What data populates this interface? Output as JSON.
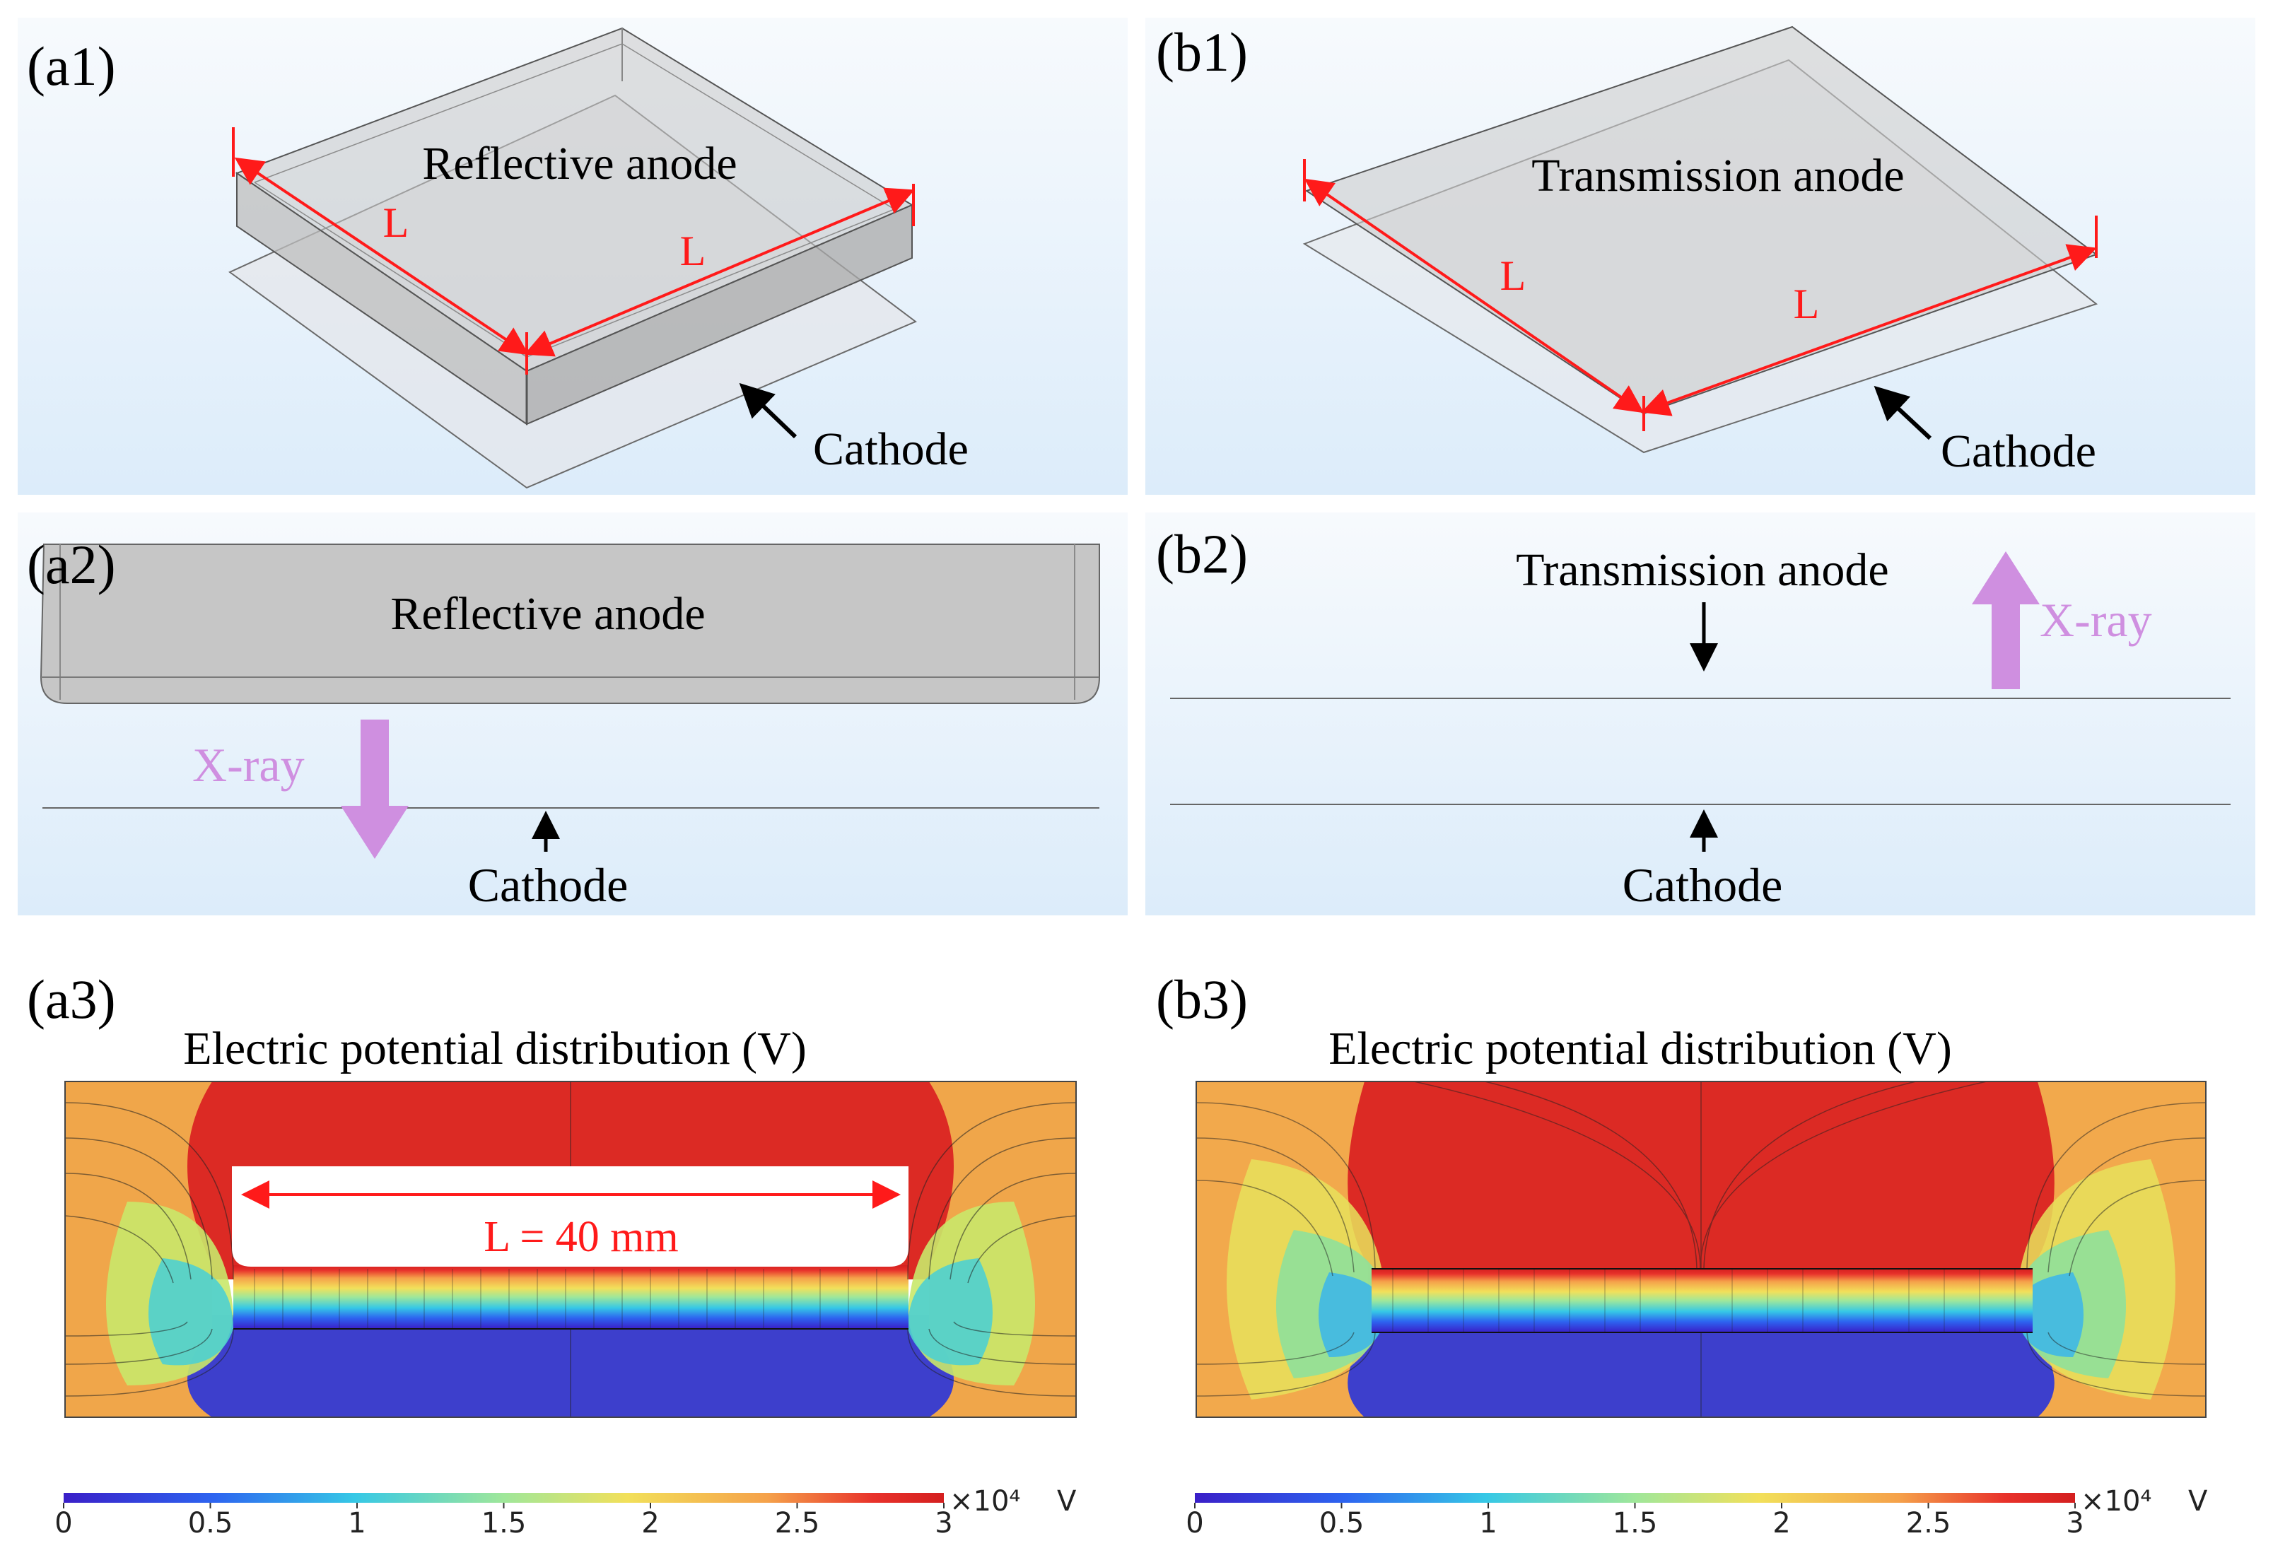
{
  "colors": {
    "dimension": "#ff1a1a",
    "xray": "#cf8fe0",
    "panel_top": "#f6f9fc",
    "panel_bottom": "#dfeefb",
    "anode_gray": "#c7c7c7",
    "outline": "#5a5a5a",
    "colormap": [
      "#3a1fc8",
      "#2d64f0",
      "#36c8e6",
      "#9fe79a",
      "#f2e05a",
      "#f5a14a",
      "#e8322b",
      "#d41f1f"
    ]
  },
  "panels": {
    "a1": {
      "label": "(a1)",
      "anode_label": "Reflective anode",
      "dim_label_1": "L",
      "dim_label_2": "L",
      "cathode_label": "Cathode"
    },
    "b1": {
      "label": "(b1)",
      "anode_label": "Transmission anode",
      "dim_label_1": "L",
      "dim_label_2": "L",
      "cathode_label": "Cathode"
    },
    "a2": {
      "label": "(a2)",
      "anode_label": "Reflective anode",
      "xray_label": "X-ray",
      "cathode_label": "Cathode"
    },
    "b2": {
      "label": "(b2)",
      "anode_label": "Transmission anode",
      "xray_label": "X-ray",
      "cathode_label": "Cathode"
    },
    "a3": {
      "label": "(a3)",
      "title": "Electric potential distribution (V)",
      "dimension_label": "L = 40 mm",
      "colorbar": {
        "ticks": [
          "0",
          "0.5",
          "1",
          "1.5",
          "2",
          "2.5",
          "3"
        ],
        "multiplier": "×10⁴",
        "unit": "V"
      }
    },
    "b3": {
      "label": "(b3)",
      "title": "Electric potential distribution (V)",
      "colorbar": {
        "ticks": [
          "0",
          "0.5",
          "1",
          "1.5",
          "2",
          "2.5",
          "3"
        ],
        "multiplier": "×10⁴",
        "unit": "V"
      }
    }
  }
}
